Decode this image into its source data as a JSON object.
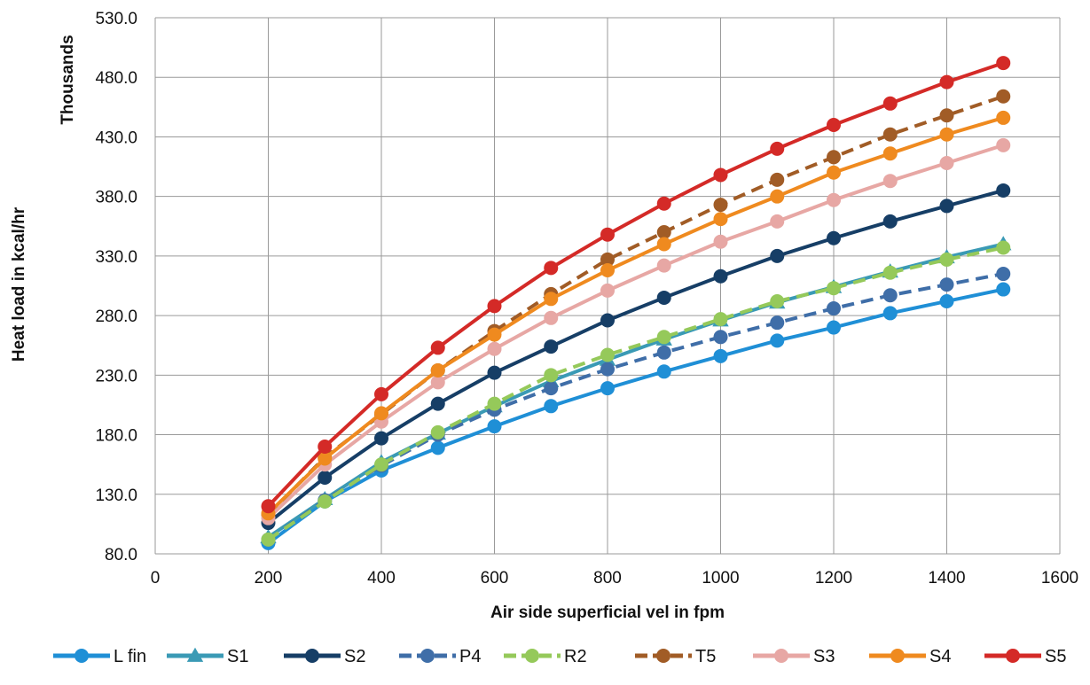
{
  "chart_data": {
    "type": "line",
    "xlabel": "Air side superficial vel in fpm",
    "ylabel": "Heat load in kcal/hr",
    "y_unit_label": "Thousands",
    "xlim": [
      0,
      1600
    ],
    "ylim": [
      80,
      530
    ],
    "x_ticks": [
      "0",
      "200",
      "400",
      "600",
      "800",
      "1000",
      "1200",
      "1400",
      "1600"
    ],
    "y_ticks": [
      "80.0",
      "130.0",
      "180.0",
      "230.0",
      "280.0",
      "330.0",
      "380.0",
      "430.0",
      "480.0",
      "530.0"
    ],
    "grid": true,
    "legend_position": "bottom",
    "x": [
      200,
      300,
      400,
      500,
      600,
      700,
      800,
      900,
      1000,
      1100,
      1200,
      1300,
      1400,
      1500
    ],
    "series": [
      {
        "name": "L fin",
        "color": "#1f8fd6",
        "marker": "circle",
        "dashed": false,
        "values": [
          89,
          124,
          150,
          169,
          187,
          204,
          219,
          233,
          246,
          259,
          270,
          282,
          292,
          302
        ]
      },
      {
        "name": "S1",
        "color": "#3a9ab5",
        "marker": "triangle",
        "dashed": false,
        "values": [
          94,
          126,
          157,
          181,
          204,
          225,
          243,
          260,
          276,
          291,
          304,
          317,
          329,
          340
        ]
      },
      {
        "name": "S2",
        "color": "#163e66",
        "marker": "circle",
        "dashed": false,
        "values": [
          106,
          144,
          177,
          206,
          232,
          254,
          276,
          295,
          313,
          330,
          345,
          359,
          372,
          385
        ]
      },
      {
        "name": "P4",
        "color": "#3f6ea8",
        "marker": "circle",
        "dashed": true,
        "values": [
          92,
          125,
          154,
          180,
          201,
          219,
          235,
          249,
          262,
          274,
          286,
          297,
          306,
          315
        ]
      },
      {
        "name": "R2",
        "color": "#95c95a",
        "marker": "circle",
        "dashed": true,
        "values": [
          92,
          124,
          155,
          182,
          206,
          230,
          247,
          262,
          277,
          292,
          303,
          316,
          327,
          337
        ]
      },
      {
        "name": "T5",
        "color": "#a15c26",
        "marker": "circle",
        "dashed": true,
        "values": [
          113,
          161,
          197,
          234,
          267,
          298,
          327,
          350,
          373,
          394,
          413,
          432,
          448,
          464
        ]
      },
      {
        "name": "S3",
        "color": "#e7a7a4",
        "marker": "circle",
        "dashed": false,
        "values": [
          110,
          155,
          191,
          224,
          252,
          278,
          301,
          322,
          342,
          359,
          377,
          393,
          408,
          423
        ]
      },
      {
        "name": "S4",
        "color": "#ef8a1f",
        "marker": "circle",
        "dashed": false,
        "values": [
          114,
          160,
          198,
          234,
          264,
          294,
          318,
          340,
          361,
          380,
          400,
          416,
          432,
          446
        ]
      },
      {
        "name": "S5",
        "color": "#d42a27",
        "marker": "circle",
        "dashed": false,
        "values": [
          120,
          170,
          214,
          253,
          288,
          320,
          348,
          374,
          398,
          420,
          440,
          458,
          476,
          492
        ]
      }
    ]
  }
}
